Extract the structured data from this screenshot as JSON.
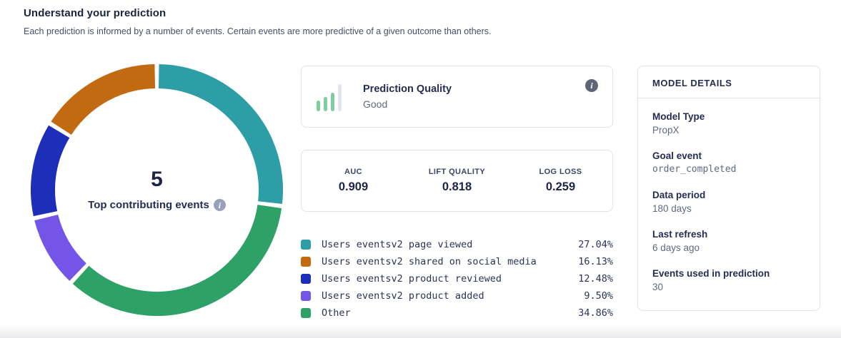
{
  "header": {
    "title": "Understand your prediction",
    "subtitle": "Each prediction is informed by a number of events. Certain events are more predictive of a given outcome than others."
  },
  "donut": {
    "center_value": "5",
    "center_label": "Top contributing events"
  },
  "quality_card": {
    "title": "Prediction Quality",
    "value": "Good",
    "icon": "signal-bars-icon",
    "icon_bar_color": "#7ECFA0",
    "icon_bar_muted_color": "#E2E5F0"
  },
  "metrics": [
    {
      "label": "AUC",
      "value": "0.909"
    },
    {
      "label": "LIFT QUALITY",
      "value": "0.818"
    },
    {
      "label": "LOG LOSS",
      "value": "0.259"
    }
  ],
  "chart_data": {
    "type": "pie",
    "donut": true,
    "title": "Top contributing events",
    "center_value": 5,
    "segments": [
      {
        "label": "Users eventsv2 page viewed",
        "value": 27.04,
        "color": "#2E9EA6"
      },
      {
        "label": "Users eventsv2 shared on social media",
        "value": 16.13,
        "color": "#C26A12"
      },
      {
        "label": "Users eventsv2 product reviewed",
        "value": 12.48,
        "color": "#1D2FB8"
      },
      {
        "label": "Users eventsv2 product added",
        "value": 9.5,
        "color": "#7356E8"
      },
      {
        "label": "Other",
        "value": 34.86,
        "color": "#2EA266"
      }
    ],
    "clockwise_order_from_top": [
      0,
      4,
      3,
      2,
      1
    ],
    "segment_gap_degrees": 2,
    "legend_position": "bottom-right"
  },
  "legend": [
    {
      "label": "Users eventsv2 page viewed",
      "pct": "27.04%",
      "color": "#2E9EA6"
    },
    {
      "label": "Users eventsv2 shared on social media",
      "pct": "16.13%",
      "color": "#C26A12"
    },
    {
      "label": "Users eventsv2 product reviewed",
      "pct": "12.48%",
      "color": "#1D2FB8"
    },
    {
      "label": "Users eventsv2 product added",
      "pct": "9.50%",
      "color": "#7356E8"
    },
    {
      "label": "Other",
      "pct": "34.86%",
      "color": "#2EA266"
    }
  ],
  "model_details": {
    "title": "MODEL DETAILS",
    "fields": [
      {
        "label": "Model Type",
        "value": "PropX",
        "mono": false
      },
      {
        "label": "Goal event",
        "value": "order_completed",
        "mono": true
      },
      {
        "label": "Data period",
        "value": "180 days",
        "mono": false
      },
      {
        "label": "Last refresh",
        "value": "6 days ago",
        "mono": false
      },
      {
        "label": "Events used in prediction",
        "value": "30",
        "mono": false
      }
    ]
  },
  "info_glyph": "i"
}
